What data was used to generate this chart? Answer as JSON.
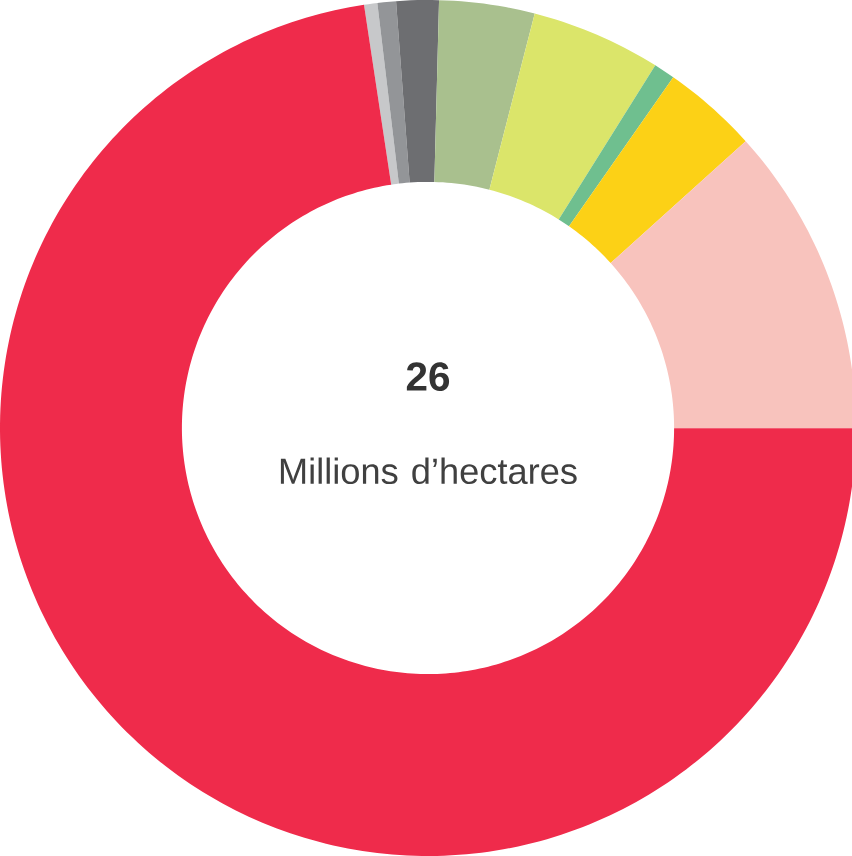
{
  "chart_data": {
    "type": "donut",
    "categories": [
      null,
      null,
      null,
      null,
      null,
      null,
      null,
      null,
      null
    ],
    "values": [
      0.5,
      0.7,
      1.6,
      3.6,
      4.9,
      0.8,
      3.6,
      11.7,
      72.6
    ],
    "colors": [
      "#c7c8ca",
      "#939598",
      "#6d6e71",
      "#a9c08e",
      "#dbe56a",
      "#6fbf8f",
      "#fcd116",
      "#f8c3bd",
      "#ef2b4b"
    ],
    "annotations": [
      "26",
      "Millions d’hectares"
    ]
  }
}
